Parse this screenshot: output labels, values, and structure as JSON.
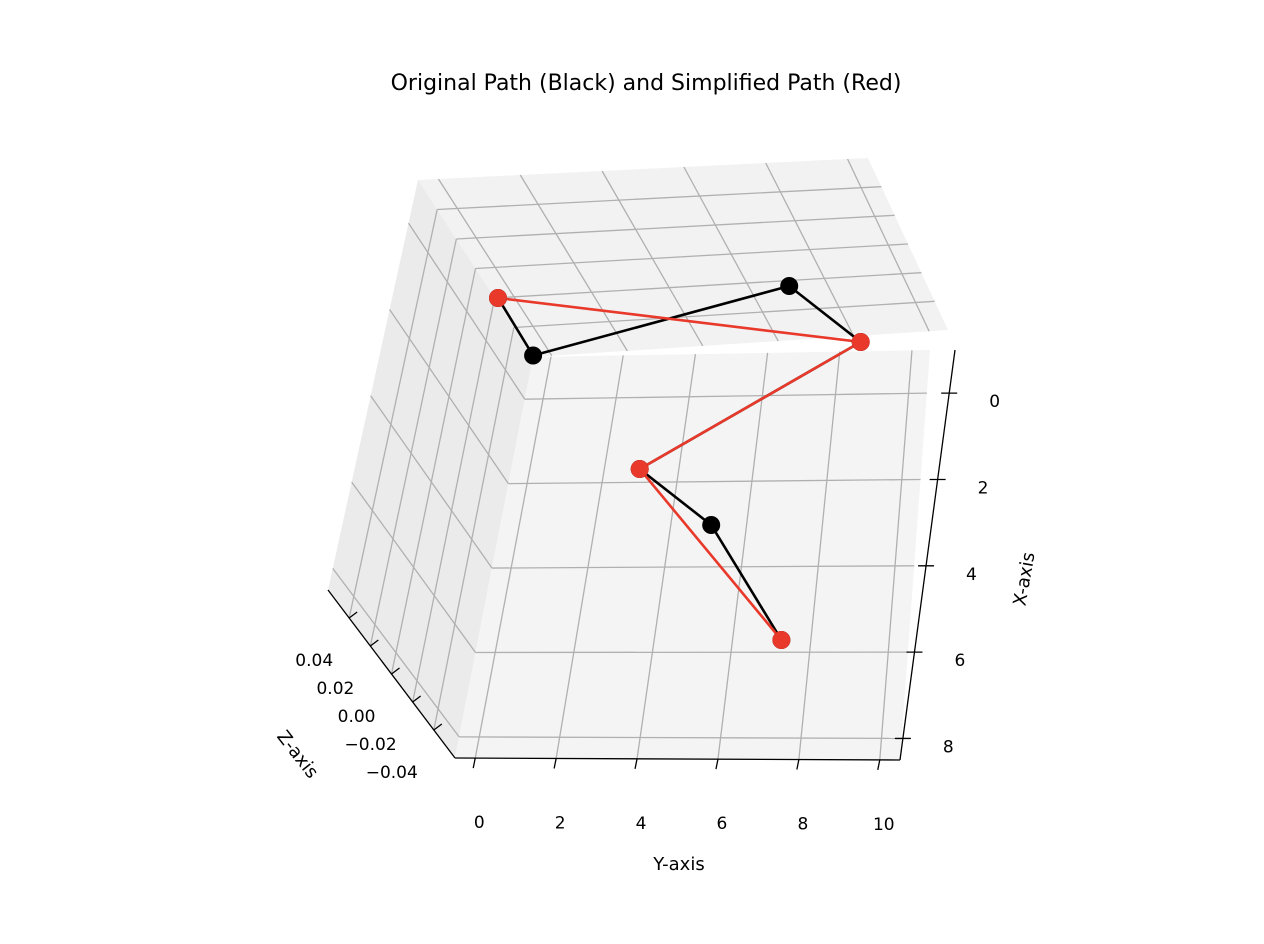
{
  "chart_data": {
    "type": "line",
    "title": "Original Path (Black) and Simplified Path (Red)",
    "xlabel": "X-axis",
    "ylabel": "Y-axis",
    "zlabel": "Z-axis",
    "xlim": [
      -1,
      8.5
    ],
    "ylim": [
      -0.5,
      10.5
    ],
    "zlim": [
      -0.05,
      0.05
    ],
    "x_ticks": [
      "0",
      "2",
      "4",
      "6",
      "8"
    ],
    "y_ticks": [
      "0",
      "2",
      "4",
      "6",
      "8",
      "10"
    ],
    "z_ticks": [
      "0.04",
      "0.02",
      "0.00",
      "−0.02",
      "−0.04"
    ],
    "grid": true,
    "projection": "3d",
    "series": [
      {
        "name": "Original Path (Black)",
        "color": "#000000",
        "marker": "circle",
        "points": [
          {
            "x": 0,
            "y": 0,
            "z": 0
          },
          {
            "x": 1,
            "y": 1,
            "z": 0
          },
          {
            "x": 0,
            "y": 8,
            "z": 0
          },
          {
            "x": 1,
            "y": 10,
            "z": 0
          },
          {
            "x": 3,
            "y": 4,
            "z": 0
          },
          {
            "x": 4,
            "y": 6,
            "z": 0
          },
          {
            "x": 6,
            "y": 8,
            "z": 0
          }
        ]
      },
      {
        "name": "Simplified Path (Red)",
        "color": "#e8392b",
        "marker": "circle",
        "points": [
          {
            "x": 0,
            "y": 0,
            "z": 0
          },
          {
            "x": 1,
            "y": 10,
            "z": 0
          },
          {
            "x": 3,
            "y": 4,
            "z": 0
          },
          {
            "x": 6,
            "y": 8,
            "z": 0
          }
        ]
      }
    ]
  }
}
